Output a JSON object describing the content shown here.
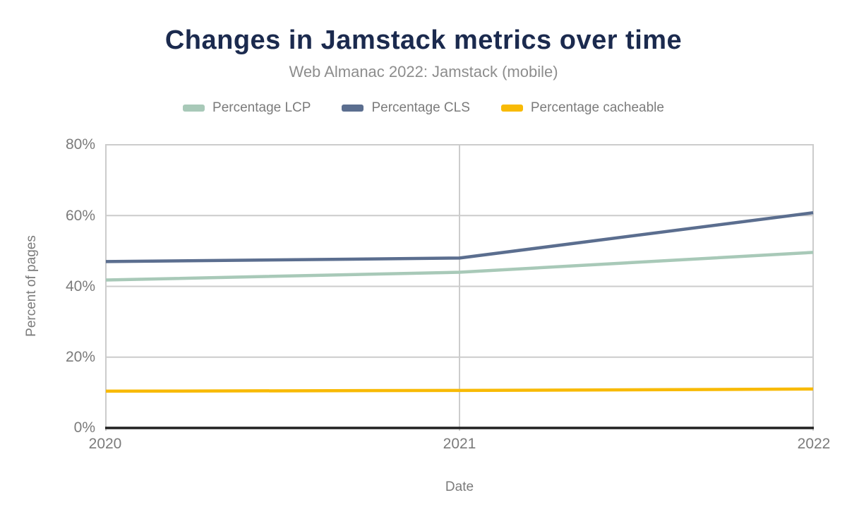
{
  "chart": {
    "title": "Changes in Jamstack metrics over time",
    "subtitle": "Web Almanac 2022: Jamstack (mobile)",
    "colors": {
      "title": "#1b2a4e",
      "text": "#7b7b7b",
      "subtitle_text": "#8d8d8d",
      "gridline": "#cccccc",
      "axis_line": "#212121",
      "background": "#ffffff"
    }
  },
  "chart_data": {
    "type": "line",
    "title": "Changes in Jamstack metrics over time",
    "subtitle": "Web Almanac 2022: Jamstack (mobile)",
    "x": [
      "2020",
      "2021",
      "2022"
    ],
    "xlabel": "Date",
    "ylabel": "Percent of pages",
    "ylim": [
      0,
      80
    ],
    "ytick_step": 20,
    "ytick_labels": [
      "80%",
      "60%",
      "40%",
      "20%",
      "0%"
    ],
    "grid": true,
    "legend_position": "top",
    "series": [
      {
        "name": "Percentage LCP",
        "color": "#a8c9b8",
        "values": [
          41.8,
          44.0,
          49.6
        ]
      },
      {
        "name": "Percentage CLS",
        "color": "#5b6e8f",
        "values": [
          47.0,
          48.0,
          60.8
        ]
      },
      {
        "name": "Percentage cacheable",
        "color": "#f8ba05",
        "values": [
          10.4,
          10.6,
          11.0
        ]
      }
    ]
  }
}
